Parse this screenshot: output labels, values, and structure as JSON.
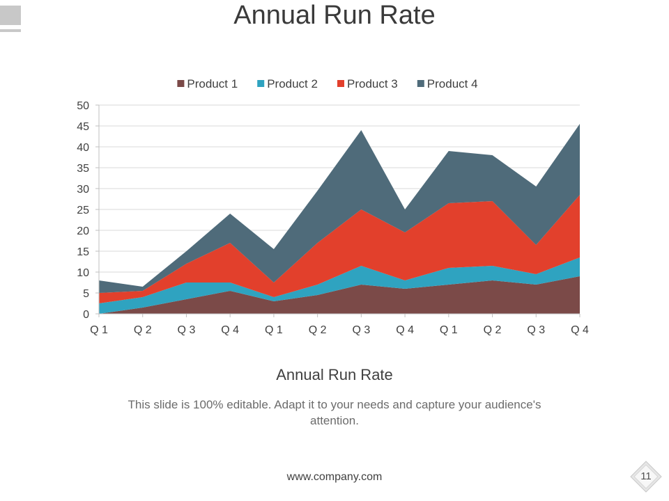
{
  "slide": {
    "title": "Annual Run Rate",
    "chart_subtitle": "Annual Run Rate",
    "description": "This slide is 100% editable. Adapt it to your needs and capture your audience's attention.",
    "footer_url": "www.company.com",
    "page_number": "11"
  },
  "colors": {
    "product1": "#7b4a48",
    "product2": "#2fa3c0",
    "product3": "#e2402c",
    "product4": "#4f6b7a",
    "gridline": "#d9d9d9",
    "axis": "#bfbfbf",
    "text": "#404040"
  },
  "chart_data": {
    "type": "area",
    "stacked": true,
    "title": "",
    "xlabel": "",
    "ylabel": "",
    "ylim": [
      0,
      50
    ],
    "yticks": [
      0,
      5,
      10,
      15,
      20,
      25,
      30,
      35,
      40,
      45,
      50
    ],
    "grid": true,
    "legend": "top",
    "categories": [
      "Q 1",
      "Q 2",
      "Q 3",
      "Q 4",
      "Q 1",
      "Q 2",
      "Q 3",
      "Q 4",
      "Q 1",
      "Q 2",
      "Q 3",
      "Q 4"
    ],
    "series": [
      {
        "name": "Product 1",
        "color": "#7b4a48",
        "values": [
          0,
          1.5,
          3.5,
          5.5,
          3,
          4.5,
          7,
          6,
          7,
          8,
          7,
          9
        ]
      },
      {
        "name": "Product 2",
        "color": "#2fa3c0",
        "values": [
          2.5,
          2.5,
          4,
          2,
          1,
          2.5,
          4.5,
          2,
          4,
          3.5,
          2.5,
          4.5
        ]
      },
      {
        "name": "Product 3",
        "color": "#e2402c",
        "values": [
          2.5,
          1.5,
          4.5,
          9.5,
          3.5,
          10,
          13.5,
          11.5,
          15.5,
          15.5,
          7,
          15
        ]
      },
      {
        "name": "Product 4",
        "color": "#4f6b7a",
        "values": [
          3,
          1,
          3,
          7,
          8,
          12.5,
          19,
          5.5,
          12.5,
          11,
          14,
          17
        ]
      }
    ]
  }
}
